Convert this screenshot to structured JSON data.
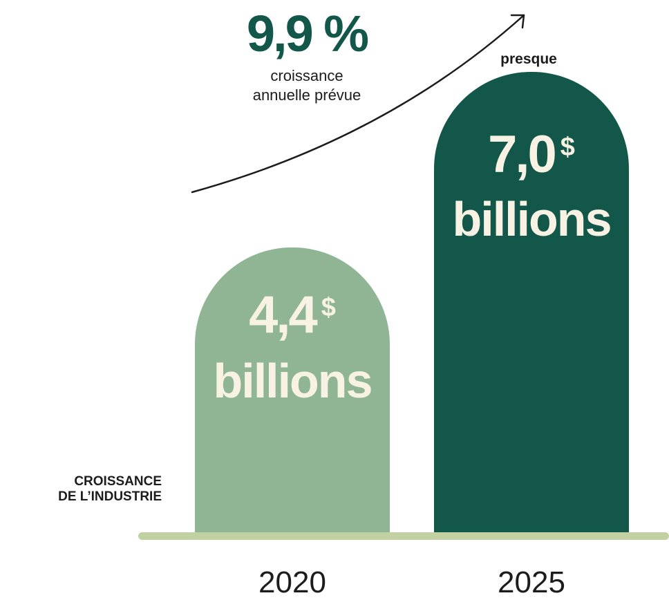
{
  "chart_data": {
    "type": "bar",
    "title": "",
    "categories": [
      "2020",
      "2025"
    ],
    "values": [
      4.4,
      7.0
    ],
    "unit_label": "billions",
    "currency_symbol": "$",
    "value_labels": [
      "4,4",
      "7,0"
    ],
    "side_label": [
      "CROISSANCE",
      "DE L’INDUSTRIE"
    ],
    "qualifier_2025": "presque",
    "annotation": {
      "value": "9,9 %",
      "text_lines": [
        "croissance",
        "annuelle prévue"
      ]
    },
    "colors": {
      "bar_2020": "#8fb595",
      "bar_2025": "#12574a",
      "label_text": "#f7f2e3",
      "baseline": "#c1d1a2",
      "accent": "#12574a"
    }
  }
}
